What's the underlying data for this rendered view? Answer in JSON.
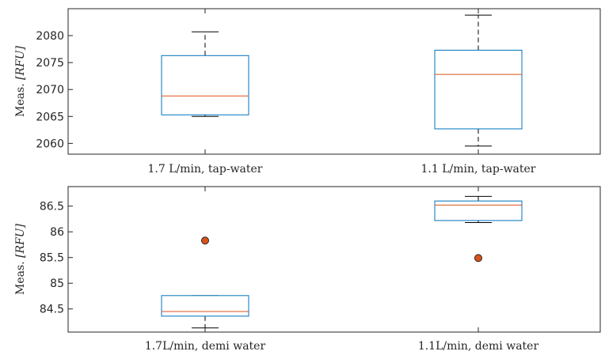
{
  "chart_data": [
    {
      "type": "box",
      "ylabel_prefix": "Meas. ",
      "ylabel_unit": "[RFU]",
      "ylim": [
        2058,
        2085
      ],
      "yticks": [
        2060,
        2065,
        2070,
        2075,
        2080
      ],
      "ytick_labels": [
        "2060",
        "2065",
        "2070",
        "2075",
        "2080"
      ],
      "categories": [
        "1.7 L/min, tap-water",
        "1.1 L/min, tap-water"
      ],
      "boxes": [
        {
          "whisker_low": 2065.0,
          "q1": 2065.3,
          "median": 2068.8,
          "q3": 2076.3,
          "whisker_high": 2080.7,
          "outliers": []
        },
        {
          "whisker_low": 2059.5,
          "q1": 2062.7,
          "median": 2072.8,
          "q3": 2077.3,
          "whisker_high": 2083.8,
          "outliers": []
        }
      ],
      "colors": {
        "box": "#0072BD",
        "median": "#D95319",
        "whisker": "#000000",
        "outlier_fill": "#D95319"
      }
    },
    {
      "type": "box",
      "ylabel_prefix": "Meas. ",
      "ylabel_unit": "[RFU]",
      "ylim": [
        84.05,
        86.88
      ],
      "yticks": [
        84.5,
        85,
        85.5,
        86,
        86.5
      ],
      "ytick_labels": [
        "84.5",
        "85",
        "85.5",
        "86",
        "86.5"
      ],
      "categories": [
        "1.7L/min, demi water",
        "1.1L/min, demi water"
      ],
      "boxes": [
        {
          "whisker_low": 84.13,
          "q1": 84.36,
          "median": 84.45,
          "q3": 84.76,
          "whisker_high": 84.76,
          "outliers": [
            85.83
          ]
        },
        {
          "whisker_low": 86.18,
          "q1": 86.22,
          "median": 86.52,
          "q3": 86.6,
          "whisker_high": 86.69,
          "outliers": [
            85.49
          ]
        }
      ],
      "colors": {
        "box": "#0072BD",
        "median": "#D95319",
        "whisker": "#000000",
        "outlier_fill": "#D95319"
      }
    }
  ]
}
